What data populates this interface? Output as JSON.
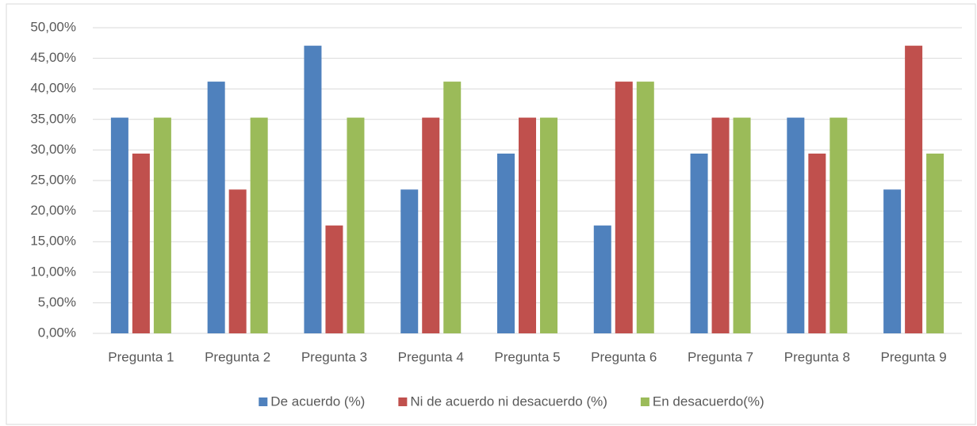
{
  "chart_data": {
    "type": "bar",
    "categories": [
      "Pregunta 1",
      "Pregunta 2",
      "Pregunta 3",
      "Pregunta 4",
      "Pregunta 5",
      "Pregunta 6",
      "Pregunta 7",
      "Pregunta 8",
      "Pregunta 9"
    ],
    "series": [
      {
        "name": "De acuerdo (%)",
        "color": "#4f81bd",
        "values": [
          35.29,
          41.18,
          47.06,
          23.53,
          29.41,
          17.65,
          29.41,
          35.29,
          23.53
        ]
      },
      {
        "name": "Ni de acuerdo ni desacuerdo (%)",
        "color": "#c0504d",
        "values": [
          29.41,
          23.53,
          17.65,
          35.29,
          35.29,
          41.18,
          35.29,
          29.41,
          47.06
        ]
      },
      {
        "name": "En desacuerdo(%)",
        "color": "#9bbb59",
        "values": [
          35.29,
          35.29,
          35.29,
          41.18,
          35.29,
          41.18,
          35.29,
          35.29,
          29.41
        ]
      }
    ],
    "ylim": [
      0,
      50
    ],
    "yticks": [
      {
        "value": 0,
        "label": "0,00%"
      },
      {
        "value": 5,
        "label": "5,00%"
      },
      {
        "value": 10,
        "label": "10,00%"
      },
      {
        "value": 15,
        "label": "15,00%"
      },
      {
        "value": 20,
        "label": "20,00%"
      },
      {
        "value": 25,
        "label": "25,00%"
      },
      {
        "value": 30,
        "label": "30,00%"
      },
      {
        "value": 35,
        "label": "35,00%"
      },
      {
        "value": 40,
        "label": "40,00%"
      },
      {
        "value": 45,
        "label": "45,00%"
      },
      {
        "value": 50,
        "label": "50,00%"
      }
    ],
    "grid": true,
    "legend": "bottom"
  }
}
